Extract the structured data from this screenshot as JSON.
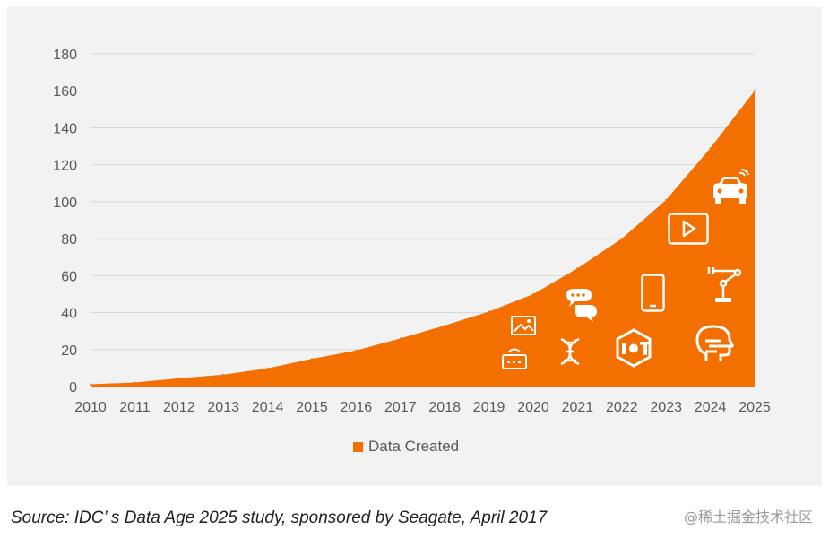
{
  "chart_data": {
    "type": "area",
    "title": "",
    "xlabel": "",
    "ylabel": "",
    "x": [
      "2010",
      "2011",
      "2012",
      "2013",
      "2014",
      "2015",
      "2016",
      "2017",
      "2018",
      "2019",
      "2020",
      "2021",
      "2022",
      "2023",
      "2024",
      "2025"
    ],
    "series": [
      {
        "name": "Data Created",
        "values": [
          1.2,
          2.2,
          4.4,
          6.4,
          9.8,
          15,
          19.5,
          26,
          33,
          40.6,
          50,
          64,
          80,
          101,
          129,
          160
        ],
        "color": "#f36f00"
      }
    ],
    "ylim": [
      0,
      180
    ],
    "yticks": [
      0,
      20,
      40,
      60,
      80,
      100,
      120,
      140,
      160,
      180
    ],
    "grid": true,
    "legend_position": "bottom"
  },
  "icons": [
    "image-icon",
    "router-icon",
    "chat-bubbles-icon",
    "dna-icon",
    "smartphone-icon",
    "iot-icon",
    "play-video-icon",
    "robot-arm-icon",
    "connected-car-icon",
    "ai-head-icon"
  ],
  "caption": {
    "source": "Source: IDC’ s Data Age 2025 study, sponsored by Seagate, April 2017"
  },
  "watermark": {
    "text": "@稀土掘金技术社区"
  }
}
